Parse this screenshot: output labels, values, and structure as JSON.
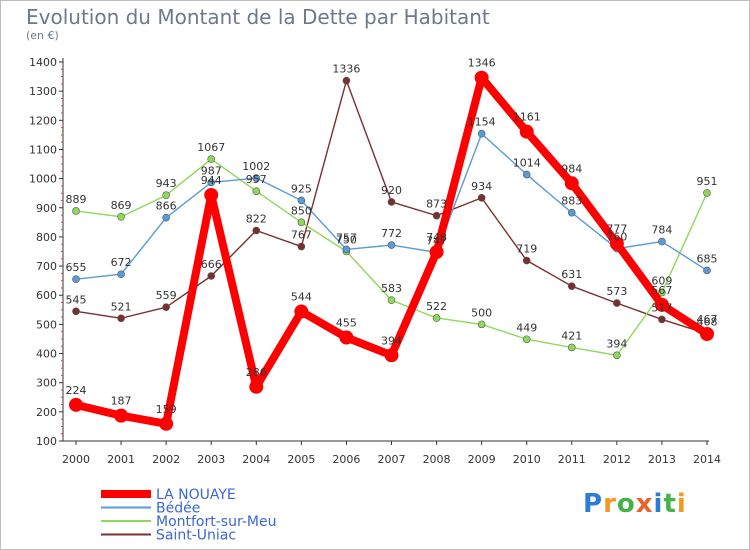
{
  "chart_data": {
    "type": "line",
    "title": "Evolution du Montant de la Dette par Habitant",
    "subtitle": "(en €)",
    "x": [
      "2000",
      "2001",
      "2002",
      "2003",
      "2004",
      "2005",
      "2006",
      "2007",
      "2008",
      "2009",
      "2010",
      "2011",
      "2012",
      "2013",
      "2014"
    ],
    "ylim": [
      100,
      1400
    ],
    "yticks": [
      100,
      200,
      300,
      400,
      500,
      600,
      700,
      800,
      900,
      1000,
      1100,
      1200,
      1300,
      1400
    ],
    "grid": false,
    "legend_position": "bottom-left",
    "series": [
      {
        "name": "Saint-Uniac",
        "color": "#7a2f2f",
        "values": [
          545,
          521,
          559,
          666,
          822,
          767,
          1336,
          920,
          873,
          934,
          719,
          631,
          573,
          517,
          468
        ]
      },
      {
        "name": "Montfort-sur-Meu",
        "color": "#8fd85c",
        "values": [
          889,
          869,
          943,
          1067,
          957,
          850,
          750,
          583,
          522,
          500,
          449,
          421,
          394,
          609,
          951
        ]
      },
      {
        "name": "Bédée",
        "color": "#5b9bd5",
        "values": [
          655,
          672,
          866,
          987,
          1002,
          925,
          757,
          772,
          747,
          1154,
          1014,
          883,
          760,
          784,
          685
        ]
      },
      {
        "name": "LA NOUAYE",
        "color": "#ff0000",
        "values": [
          224,
          187,
          159,
          944,
          286,
          544,
          455,
          394,
          748,
          1346,
          1161,
          984,
          777,
          567,
          467
        ]
      }
    ]
  },
  "logo": {
    "letters": [
      "P",
      "r",
      "o",
      "x",
      "i",
      "t",
      "i"
    ],
    "colors": [
      "#2e7bd6",
      "#f29a1f",
      "#45b34a",
      "#e9622c",
      "#2e7bd6",
      "#45b34a",
      "#f29a1f"
    ]
  }
}
